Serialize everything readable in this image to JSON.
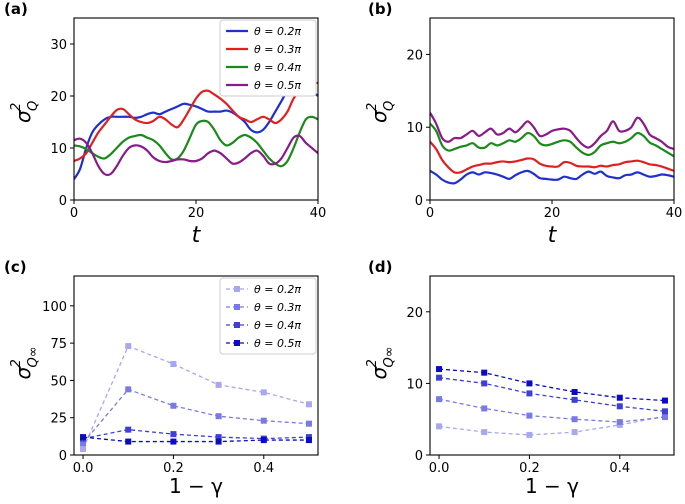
{
  "chart_data": [
    {
      "id": "a",
      "panel_label": "(a)",
      "type": "line",
      "xlabel": "t",
      "ylabel_main": "σ",
      "ylabel_sup": "2",
      "ylabel_sub": "Q",
      "xlim": [
        0,
        40
      ],
      "ylim": [
        0,
        35
      ],
      "xticks": [
        0,
        20,
        40
      ],
      "yticks": [
        0,
        10,
        20,
        30
      ],
      "legend_position": "top-right",
      "series": [
        {
          "name": "θ = 0.2π",
          "color": "#1f2fd0",
          "x": [
            0,
            1,
            2,
            3,
            4,
            5,
            6,
            7,
            8,
            9,
            10,
            11,
            12,
            13,
            14,
            15,
            16,
            17,
            18,
            19,
            20,
            21,
            22,
            23,
            24,
            25,
            26,
            27,
            28,
            29,
            30,
            31,
            32,
            33,
            34,
            35,
            36,
            37,
            38,
            39,
            40
          ],
          "y": [
            4,
            6,
            10,
            13,
            14.5,
            15.5,
            16,
            16,
            16,
            16,
            15.8,
            16,
            16.5,
            16.8,
            16.5,
            17,
            17.5,
            18,
            18.5,
            18.3,
            18,
            17.5,
            17,
            17,
            17,
            17.2,
            16.8,
            16,
            15,
            13.5,
            13,
            13.5,
            15,
            17,
            19,
            21,
            22,
            22.5,
            22,
            21,
            20
          ]
        },
        {
          "name": "θ = 0.3π",
          "color": "#e02020",
          "x": [
            0,
            1,
            2,
            3,
            4,
            5,
            6,
            7,
            8,
            9,
            10,
            11,
            12,
            13,
            14,
            15,
            16,
            17,
            18,
            19,
            20,
            21,
            22,
            23,
            24,
            25,
            26,
            27,
            28,
            29,
            30,
            31,
            32,
            33,
            34,
            35,
            36,
            37,
            38,
            39,
            40
          ],
          "y": [
            7.5,
            8,
            9,
            11,
            13,
            14.5,
            16,
            17.3,
            17.5,
            16.5,
            15.5,
            15,
            14.8,
            15.2,
            16,
            15.5,
            14.5,
            14,
            15.5,
            17.5,
            19.5,
            20.8,
            21,
            20.3,
            19.5,
            18.5,
            17.2,
            16,
            15.5,
            15,
            15.5,
            16,
            15.5,
            14.8,
            15.5,
            17,
            19.5,
            21,
            22,
            22.5,
            22.5
          ]
        },
        {
          "name": "θ = 0.4π",
          "color": "#1a8a1a",
          "x": [
            0,
            1,
            2,
            3,
            4,
            5,
            6,
            7,
            8,
            9,
            10,
            11,
            12,
            13,
            14,
            15,
            16,
            17,
            18,
            19,
            20,
            21,
            22,
            23,
            24,
            25,
            26,
            27,
            28,
            29,
            30,
            31,
            32,
            33,
            34,
            35,
            36,
            37,
            38,
            39,
            40
          ],
          "y": [
            10.5,
            10.3,
            9.8,
            9,
            8.3,
            8,
            8.8,
            10,
            11.2,
            12,
            12.3,
            12.5,
            12,
            11.5,
            10.5,
            9,
            7.8,
            8,
            9.5,
            12,
            14.5,
            15.2,
            15,
            13.5,
            11.5,
            10.5,
            11,
            12,
            12.5,
            12,
            11,
            9.5,
            8,
            7,
            6.5,
            7.5,
            10,
            13,
            15.5,
            16,
            15.5
          ]
        },
        {
          "name": "θ = 0.5π",
          "color": "#8a1a8a",
          "x": [
            0,
            1,
            2,
            3,
            4,
            5,
            6,
            7,
            8,
            9,
            10,
            11,
            12,
            13,
            14,
            15,
            16,
            17,
            18,
            19,
            20,
            21,
            22,
            23,
            24,
            25,
            26,
            27,
            28,
            29,
            30,
            31,
            32,
            33,
            34,
            35,
            36,
            37,
            38,
            39,
            40
          ],
          "y": [
            11.5,
            11.8,
            11,
            9,
            6.5,
            5,
            5,
            6.5,
            8.5,
            10,
            10.5,
            10.3,
            9.5,
            8.2,
            7.5,
            7.3,
            7.5,
            7.8,
            7.8,
            7.5,
            7.5,
            8,
            9,
            9.5,
            9,
            8,
            7,
            7.2,
            8,
            9,
            9.5,
            8.5,
            7,
            7,
            8,
            10,
            12,
            12.3,
            11,
            10,
            9
          ]
        }
      ]
    },
    {
      "id": "b",
      "panel_label": "(b)",
      "type": "line",
      "xlabel": "t",
      "ylabel_main": "σ",
      "ylabel_sup": "2",
      "ylabel_sub": "Q",
      "xlim": [
        0,
        40
      ],
      "ylim": [
        0,
        25
      ],
      "xticks": [
        0,
        20,
        40
      ],
      "yticks": [
        0,
        10,
        20
      ],
      "series": [
        {
          "name": "θ = 0.2π",
          "color": "#1f2fd0",
          "x": [
            0,
            1,
            2,
            3,
            4,
            5,
            6,
            7,
            8,
            9,
            10,
            11,
            12,
            13,
            14,
            15,
            16,
            17,
            18,
            19,
            20,
            21,
            22,
            23,
            24,
            25,
            26,
            27,
            28,
            29,
            30,
            31,
            32,
            33,
            34,
            35,
            36,
            37,
            38,
            39,
            40
          ],
          "y": [
            4,
            3.5,
            2.8,
            2.4,
            2.3,
            2.8,
            3.5,
            3.8,
            3.5,
            3.8,
            3.7,
            3.5,
            3.2,
            2.9,
            3.4,
            3.8,
            4,
            3.6,
            3,
            2.9,
            2.8,
            2.8,
            3.2,
            3,
            2.9,
            3.5,
            3.9,
            3.6,
            3.9,
            3.3,
            3.1,
            3,
            3.4,
            3.5,
            3.8,
            3.5,
            3.2,
            3.3,
            3.5,
            3.4,
            3.2
          ]
        },
        {
          "name": "θ = 0.3π",
          "color": "#e02020",
          "x": [
            0,
            1,
            2,
            3,
            4,
            5,
            6,
            7,
            8,
            9,
            10,
            11,
            12,
            13,
            14,
            15,
            16,
            17,
            18,
            19,
            20,
            21,
            22,
            23,
            24,
            25,
            26,
            27,
            28,
            29,
            30,
            31,
            32,
            33,
            34,
            35,
            36,
            37,
            38,
            39,
            40
          ],
          "y": [
            8,
            7,
            5.5,
            4.5,
            3.8,
            3.8,
            4.2,
            4.6,
            4.8,
            5,
            5,
            5.2,
            5.3,
            5.2,
            5.3,
            5.5,
            5.7,
            5.6,
            5,
            4.7,
            4.6,
            4.6,
            5.2,
            5.1,
            4.7,
            4.6,
            4.6,
            4.5,
            4.7,
            4.6,
            4.8,
            4.9,
            5.2,
            5.3,
            5.4,
            5.2,
            4.9,
            4.8,
            4.6,
            4.3,
            4
          ]
        },
        {
          "name": "θ = 0.4π",
          "color": "#1a8a1a",
          "x": [
            0,
            1,
            2,
            3,
            4,
            5,
            6,
            7,
            8,
            9,
            10,
            11,
            12,
            13,
            14,
            15,
            16,
            17,
            18,
            19,
            20,
            21,
            22,
            23,
            24,
            25,
            26,
            27,
            28,
            29,
            30,
            31,
            32,
            33,
            34,
            35,
            36,
            37,
            38,
            39,
            40
          ],
          "y": [
            10.5,
            9.5,
            7.5,
            6.8,
            7,
            7.3,
            7.5,
            7.8,
            7.2,
            7.2,
            7.8,
            7.5,
            7.8,
            8.2,
            8,
            8.5,
            9.2,
            8.8,
            7.8,
            7.5,
            7.7,
            8,
            8.2,
            8,
            7.2,
            6.5,
            6.2,
            6.6,
            7.5,
            7.8,
            8,
            7.8,
            8,
            8.5,
            9.2,
            8.8,
            7.9,
            7.5,
            7,
            6.5,
            6
          ]
        },
        {
          "name": "θ = 0.5π",
          "color": "#8a1a8a",
          "x": [
            0,
            1,
            2,
            3,
            4,
            5,
            6,
            7,
            8,
            9,
            10,
            11,
            12,
            13,
            14,
            15,
            16,
            17,
            18,
            19,
            20,
            21,
            22,
            23,
            24,
            25,
            26,
            27,
            28,
            29,
            30,
            31,
            32,
            33,
            34,
            35,
            36,
            37,
            38,
            39,
            40
          ],
          "y": [
            12,
            10.5,
            8.5,
            8,
            8.5,
            8.5,
            9,
            9.5,
            8.8,
            9.3,
            9.8,
            9,
            9.2,
            9.8,
            9.3,
            10,
            10.8,
            10,
            8.8,
            9,
            9.5,
            9.7,
            9.8,
            9.5,
            8.5,
            7.6,
            7.2,
            7.8,
            8.8,
            9.5,
            10.8,
            9.5,
            9.5,
            10,
            11.3,
            10.5,
            9,
            8.5,
            8,
            7.3,
            7
          ]
        }
      ]
    },
    {
      "id": "c",
      "panel_label": "(c)",
      "type": "line",
      "xlabel": "1 − γ",
      "ylabel_main": "σ",
      "ylabel_sup": "2",
      "ylabel_sub": "Q∞",
      "xlim": [
        -0.02,
        0.52
      ],
      "ylim": [
        0,
        120
      ],
      "xticks": [
        0.0,
        0.2,
        0.4
      ],
      "xtick_labels": [
        "0.0",
        "0.2",
        "0.4"
      ],
      "yticks": [
        0,
        25,
        50,
        75,
        100
      ],
      "legend_position": "top-right",
      "series": [
        {
          "name": "θ = 0.2π",
          "color": "#a8a8f0",
          "x": [
            0,
            0.1,
            0.2,
            0.3,
            0.4,
            0.5
          ],
          "y": [
            4,
            73,
            61,
            47,
            42,
            34
          ]
        },
        {
          "name": "θ = 0.3π",
          "color": "#7a7ae6",
          "x": [
            0,
            0.1,
            0.2,
            0.3,
            0.4,
            0.5
          ],
          "y": [
            8,
            44,
            33,
            26,
            23,
            21
          ]
        },
        {
          "name": "θ = 0.4π",
          "color": "#3f3fd8",
          "x": [
            0,
            0.1,
            0.2,
            0.3,
            0.4,
            0.5
          ],
          "y": [
            11,
            17,
            14,
            12,
            11,
            12
          ]
        },
        {
          "name": "θ = 0.5π",
          "color": "#0a0ac8",
          "x": [
            0,
            0.1,
            0.2,
            0.3,
            0.4,
            0.5
          ],
          "y": [
            12,
            9,
            9,
            9,
            10,
            10
          ]
        }
      ]
    },
    {
      "id": "d",
      "panel_label": "(d)",
      "type": "line",
      "xlabel": "1 − γ",
      "ylabel_main": "σ",
      "ylabel_sup": "2",
      "ylabel_sub": "Q∞",
      "xlim": [
        -0.02,
        0.52
      ],
      "ylim": [
        0,
        25
      ],
      "xticks": [
        0.0,
        0.2,
        0.4
      ],
      "xtick_labels": [
        "0.0",
        "0.2",
        "0.4"
      ],
      "yticks": [
        0,
        10,
        20
      ],
      "series": [
        {
          "name": "θ = 0.2π",
          "color": "#a8a8f0",
          "x": [
            0,
            0.1,
            0.2,
            0.3,
            0.4,
            0.5
          ],
          "y": [
            4,
            3.2,
            2.8,
            3.2,
            4.2,
            5.4
          ]
        },
        {
          "name": "θ = 0.3π",
          "color": "#7a7ae6",
          "x": [
            0,
            0.1,
            0.2,
            0.3,
            0.4,
            0.5
          ],
          "y": [
            7.8,
            6.5,
            5.5,
            5,
            4.6,
            5.3
          ]
        },
        {
          "name": "θ = 0.4π",
          "color": "#3f3fd8",
          "x": [
            0,
            0.1,
            0.2,
            0.3,
            0.4,
            0.5
          ],
          "y": [
            10.8,
            10,
            8.6,
            7.7,
            6.8,
            6.1
          ]
        },
        {
          "name": "θ = 0.5π",
          "color": "#0a0ac8",
          "x": [
            0,
            0.1,
            0.2,
            0.3,
            0.4,
            0.5
          ],
          "y": [
            12,
            11.5,
            10,
            8.8,
            8,
            7.6
          ]
        }
      ]
    }
  ]
}
